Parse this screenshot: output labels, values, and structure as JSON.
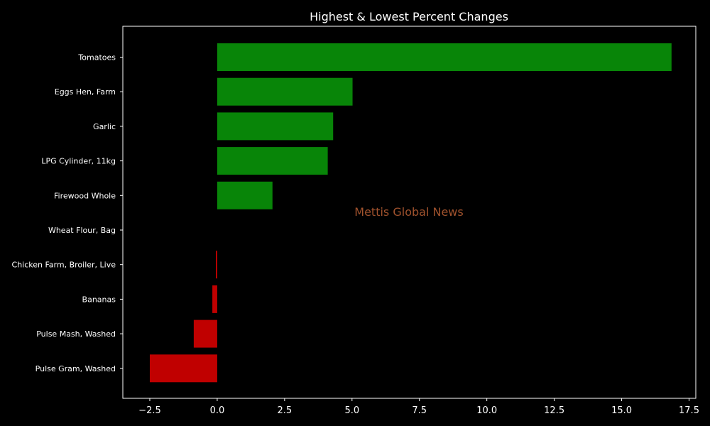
{
  "chart_data": {
    "type": "bar",
    "orientation": "horizontal",
    "title": "Highest & Lowest Percent Changes",
    "xlabel": "",
    "ylabel": "",
    "categories": [
      "Tomatoes",
      "Eggs Hen, Farm",
      "Garlic",
      "LPG Cylinder, 11kg",
      "Firewood Whole",
      "Wheat Flour, Bag",
      "Chicken Farm, Broiler, Live",
      "Bananas",
      "Pulse Mash, Washed",
      "Pulse Gram, Washed"
    ],
    "values": [
      16.85,
      5.02,
      4.3,
      4.1,
      2.05,
      0.0,
      -0.05,
      -0.18,
      -0.87,
      -2.5
    ],
    "xlim": [
      -3.5,
      17.75
    ],
    "xticks": [
      -2.5,
      0.0,
      2.5,
      5.0,
      7.5,
      10.0,
      12.5,
      15.0,
      17.5
    ],
    "xtick_labels": [
      "−2.5",
      "0.0",
      "2.5",
      "5.0",
      "7.5",
      "10.0",
      "12.5",
      "15.0",
      "17.5"
    ],
    "grid": false,
    "colors": {
      "positive": "#088508",
      "negative": "#c00000",
      "background": "#000000",
      "axes": "#ffffff",
      "text": "#ffffff",
      "watermark": "#a0522d"
    },
    "watermark": "Mettis Global News"
  }
}
